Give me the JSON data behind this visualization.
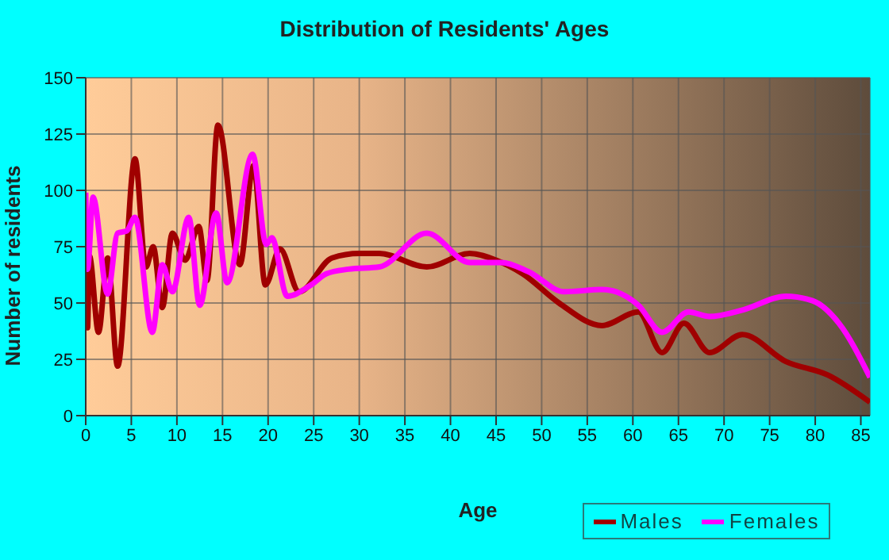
{
  "chart_data": {
    "type": "line",
    "title": "Distribution of Residents' Ages",
    "xlabel": "Age",
    "ylabel": "Number of residents",
    "xlim": [
      0,
      86
    ],
    "xticks": [
      0,
      5,
      10,
      15,
      20,
      25,
      30,
      35,
      40,
      45,
      50,
      55,
      60,
      65,
      70,
      75,
      80,
      85
    ],
    "ylim": [
      0,
      150
    ],
    "yticks": [
      0,
      25,
      50,
      75,
      100,
      125,
      150
    ],
    "grid": true,
    "legend": "bottom",
    "series": [
      {
        "name": "Males",
        "color": "#a00000",
        "x": [
          0,
          0.2,
          0.4,
          1.4,
          2.4,
          3.5,
          5.4,
          6.6,
          7.4,
          8.4,
          9.5,
          10.9,
          12.4,
          13.3,
          14.5,
          16.9,
          18.4,
          19.7,
          21.3,
          23.4,
          27,
          30,
          32.2,
          37.4,
          42.1,
          45,
          47.9,
          51.9,
          56.6,
          60.6,
          63.2,
          65.6,
          68.4,
          72,
          76.8,
          81.4,
          86
        ],
        "values": [
          67,
          39,
          71,
          37,
          70,
          22,
          114,
          66,
          75,
          48,
          81,
          69,
          84,
          60,
          129,
          67,
          111,
          58,
          74,
          55,
          70,
          72,
          72,
          66,
          72,
          69,
          63,
          50,
          40,
          46,
          28,
          41,
          28,
          36,
          24,
          18,
          6
        ]
      },
      {
        "name": "Females",
        "color": "#ff00ff",
        "x": [
          0,
          0.2,
          0.8,
          2.4,
          3.5,
          4.5,
          5.4,
          7.3,
          8.4,
          9.5,
          11.3,
          12.5,
          14.3,
          15.5,
          18.3,
          19.8,
          20.4,
          22.1,
          24.7,
          26.4,
          28.8,
          32.2,
          37.4,
          42.1,
          45.6,
          48.5,
          52.5,
          56.6,
          60.6,
          63.2,
          66.1,
          68.4,
          72.1,
          76.8,
          79.7,
          82.6,
          86
        ],
        "values": [
          99,
          65,
          97,
          54,
          81,
          82,
          88,
          37,
          67,
          55,
          88,
          49,
          90,
          59,
          116,
          76,
          79,
          53,
          58,
          63,
          65,
          66,
          81,
          68,
          68,
          64,
          55,
          56,
          49,
          37,
          46,
          44,
          47,
          53,
          51,
          41,
          17
        ]
      }
    ]
  }
}
